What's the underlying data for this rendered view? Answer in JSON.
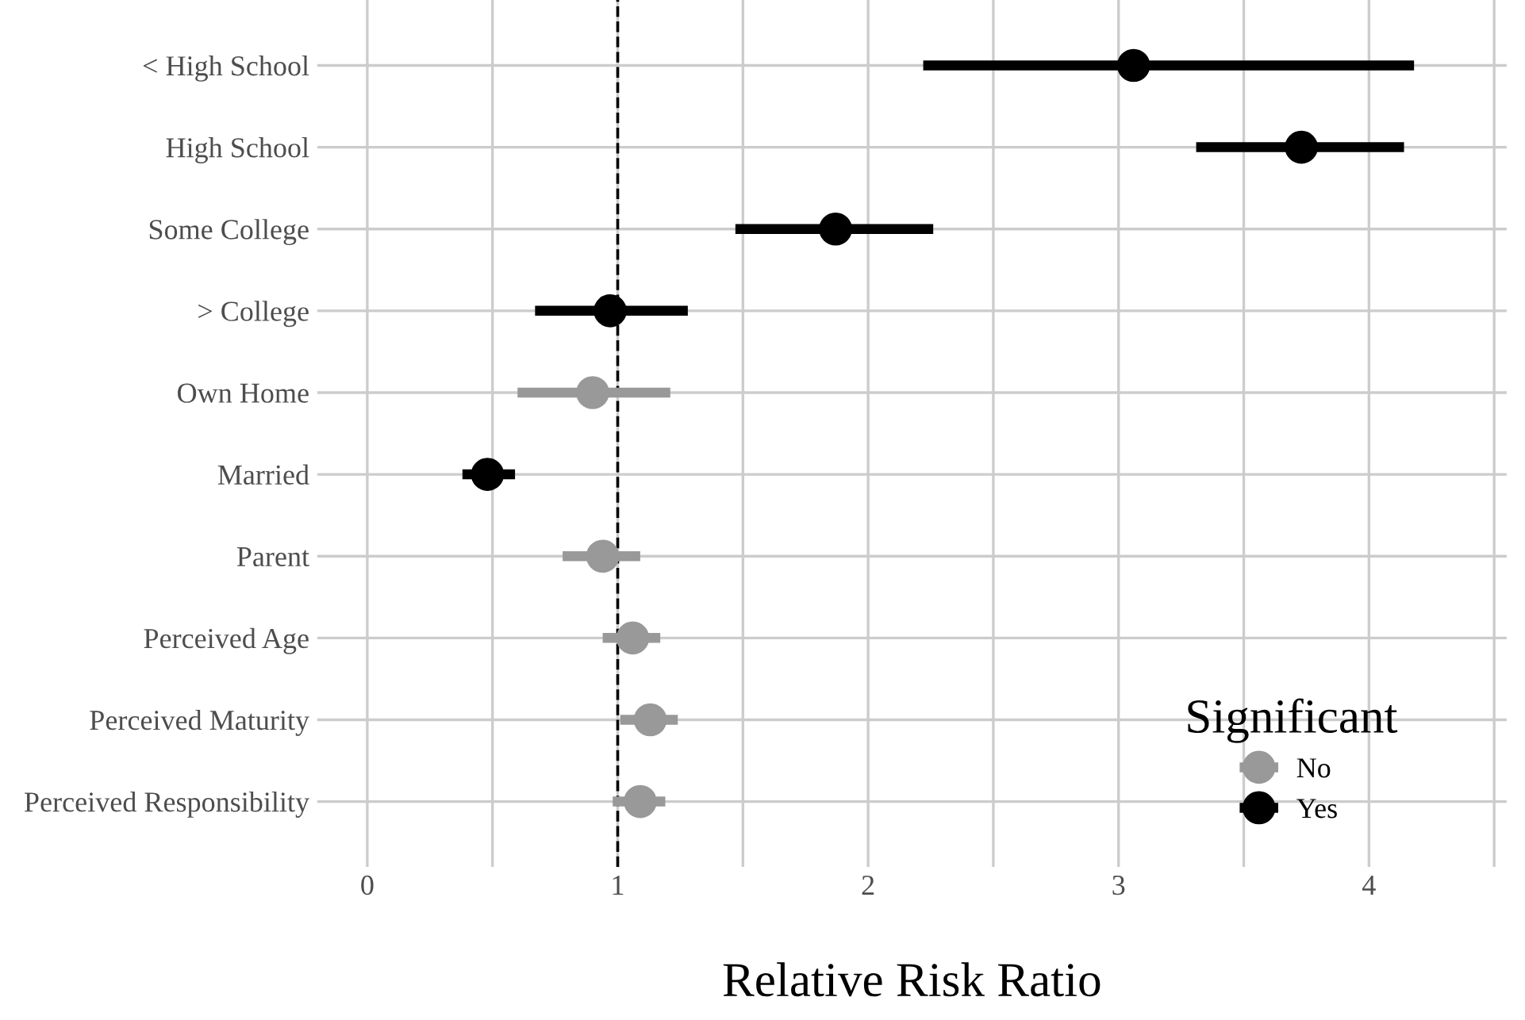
{
  "chart_data": {
    "type": "scatter",
    "orientation": "horizontal",
    "xlabel": "Relative Risk Ratio",
    "legend_title": "Significant",
    "legend": "bottom right",
    "categories": [
      "< High School",
      "High School",
      "Some College",
      "> College",
      "Own Home",
      "Married",
      "Parent",
      "Perceived Age",
      "Perceived Maturity",
      "Perceived Responsibility"
    ],
    "series": [
      {
        "name": "No",
        "color": "#999999",
        "values": [
          null,
          null,
          null,
          null,
          0.9,
          null,
          0.94,
          1.06,
          1.13,
          1.09
        ],
        "errors": [
          null,
          null,
          null,
          null,
          [
            0.6,
            1.21
          ],
          null,
          [
            0.78,
            1.09
          ],
          [
            0.94,
            1.17
          ],
          [
            1.01,
            1.24
          ],
          [
            0.98,
            1.19
          ]
        ]
      },
      {
        "name": "Yes",
        "color": "#000000",
        "values": [
          3.06,
          3.73,
          1.87,
          0.97,
          null,
          0.48,
          null,
          null,
          null,
          null
        ],
        "errors": [
          [
            2.22,
            4.18
          ],
          [
            3.31,
            4.14
          ],
          [
            1.47,
            2.26
          ],
          [
            0.67,
            1.28
          ],
          null,
          [
            0.38,
            0.59
          ],
          null,
          null,
          null,
          null
        ]
      }
    ],
    "xlim": [
      -0.2,
      4.55
    ],
    "xticks": [
      0,
      {
        "value": 0.5,
        "label": null
      },
      1,
      {
        "value": 1.5,
        "label": null
      },
      2,
      {
        "value": 2.5,
        "label": null
      },
      3,
      {
        "value": 3.5,
        "label": null
      },
      4,
      {
        "value": 4.5,
        "label": null
      }
    ],
    "ref_lines": [
      {
        "axis": "x",
        "value": 1,
        "color": "#000000",
        "line_style": "dashed"
      }
    ],
    "grid": true,
    "marker": "circle"
  }
}
